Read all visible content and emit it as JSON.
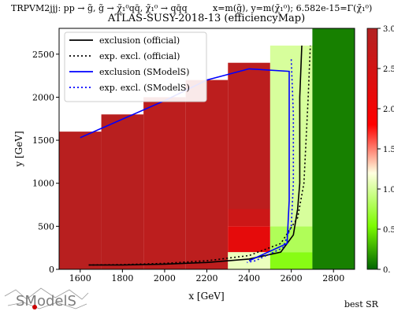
{
  "chart_data": {
    "type": "heatmap",
    "topline": "TRPVM2jjj: pp → g̃, g̃ → χ̃₁⁰qq̄, χ̃₁⁰ → qq̄q",
    "axis_definition": "x=m(g̃), y=m(χ̃₁⁰); 6.582e-15=Γ(χ̃₁⁰)",
    "title": "ATLAS-SUSY-2018-13 (efficiencyMap)",
    "xlabel": "x [GeV]",
    "ylabel": "y [GeV]",
    "xlim": [
      1500,
      2900
    ],
    "ylim": [
      0,
      2800
    ],
    "xticks": [
      1600,
      1800,
      2000,
      2200,
      2400,
      2600,
      2800
    ],
    "yticks": [
      0,
      500,
      1000,
      1500,
      2000,
      2500
    ],
    "colorbar": {
      "range": [
        0,
        3
      ],
      "ticks": [
        "0.",
        "0.5",
        "1.0",
        "1.5",
        "2.0",
        "2.5",
        "3.0"
      ],
      "colors": [
        "#006400",
        "#7cfc00",
        "#ffffe0",
        "#ff0000",
        "#b22222"
      ]
    },
    "legend_position": "top-left",
    "legend": [
      {
        "label": "exclusion (official)",
        "color": "#000000",
        "style": "solid"
      },
      {
        "label": "exp. excl. (official)",
        "color": "#000000",
        "style": "dotted"
      },
      {
        "label": "exclusion (SModelS)",
        "color": "#0000ff",
        "style": "solid"
      },
      {
        "label": "exp. excl. (SModelS)",
        "color": "#0000ff",
        "style": "dotted"
      }
    ],
    "cells": [
      {
        "x0": 1500,
        "x1": 1700,
        "y0": 0,
        "y1": 1600,
        "value": 2.9
      },
      {
        "x0": 1700,
        "x1": 1900,
        "y0": 0,
        "y1": 1800,
        "value": 2.9
      },
      {
        "x0": 1900,
        "x1": 2100,
        "y0": 0,
        "y1": 2000,
        "value": 2.85
      },
      {
        "x0": 2100,
        "x1": 2300,
        "y0": 0,
        "y1": 2200,
        "value": 2.85
      },
      {
        "x0": 2300,
        "x1": 2500,
        "y0": 0,
        "y1": 200,
        "value": 1.1
      },
      {
        "x0": 2300,
        "x1": 2500,
        "y0": 200,
        "y1": 500,
        "value": 2.2
      },
      {
        "x0": 2300,
        "x1": 2500,
        "y0": 500,
        "y1": 700,
        "value": 2.6
      },
      {
        "x0": 2300,
        "x1": 2500,
        "y0": 700,
        "y1": 2400,
        "value": 2.85
      },
      {
        "x0": 2500,
        "x1": 2700,
        "y0": 0,
        "y1": 200,
        "value": 0.6
      },
      {
        "x0": 2500,
        "x1": 2700,
        "y0": 200,
        "y1": 500,
        "value": 0.8
      },
      {
        "x0": 2500,
        "x1": 2700,
        "y0": 500,
        "y1": 2600,
        "value": 1.0
      },
      {
        "x0": 2700,
        "x1": 2900,
        "y0": 0,
        "y1": 2800,
        "value": 0.1
      }
    ],
    "series": [
      {
        "name": "exclusion (official)",
        "points": [
          [
            1640,
            50
          ],
          [
            1800,
            50
          ],
          [
            2000,
            60
          ],
          [
            2200,
            80
          ],
          [
            2400,
            120
          ],
          [
            2550,
            200
          ],
          [
            2610,
            400
          ],
          [
            2630,
            700
          ],
          [
            2640,
            1000
          ],
          [
            2640,
            1500
          ],
          [
            2640,
            2000
          ],
          [
            2650,
            2600
          ]
        ]
      },
      {
        "name": "exp. excl. (official)",
        "points": [
          [
            1640,
            50
          ],
          [
            1800,
            55
          ],
          [
            2000,
            70
          ],
          [
            2200,
            100
          ],
          [
            2400,
            160
          ],
          [
            2550,
            300
          ],
          [
            2630,
            600
          ],
          [
            2660,
            1000
          ],
          [
            2670,
            1500
          ],
          [
            2680,
            2000
          ],
          [
            2690,
            2600
          ]
        ]
      },
      {
        "name": "exclusion (SModelS)",
        "points": [
          [
            1600,
            1530
          ],
          [
            2000,
            1960
          ],
          [
            2200,
            2200
          ],
          [
            2400,
            2330
          ],
          [
            2590,
            2300
          ],
          [
            2590,
            1500
          ],
          [
            2590,
            800
          ],
          [
            2580,
            300
          ],
          [
            2400,
            100
          ]
        ]
      },
      {
        "name": "exp. excl. (SModelS)",
        "points": [
          [
            2600,
            2440
          ],
          [
            2610,
            1800
          ],
          [
            2610,
            1000
          ],
          [
            2600,
            500
          ],
          [
            2560,
            250
          ],
          [
            2430,
            100
          ],
          [
            2390,
            80
          ]
        ]
      }
    ],
    "corner_text": "best SR",
    "logo_text": "SModelS"
  }
}
